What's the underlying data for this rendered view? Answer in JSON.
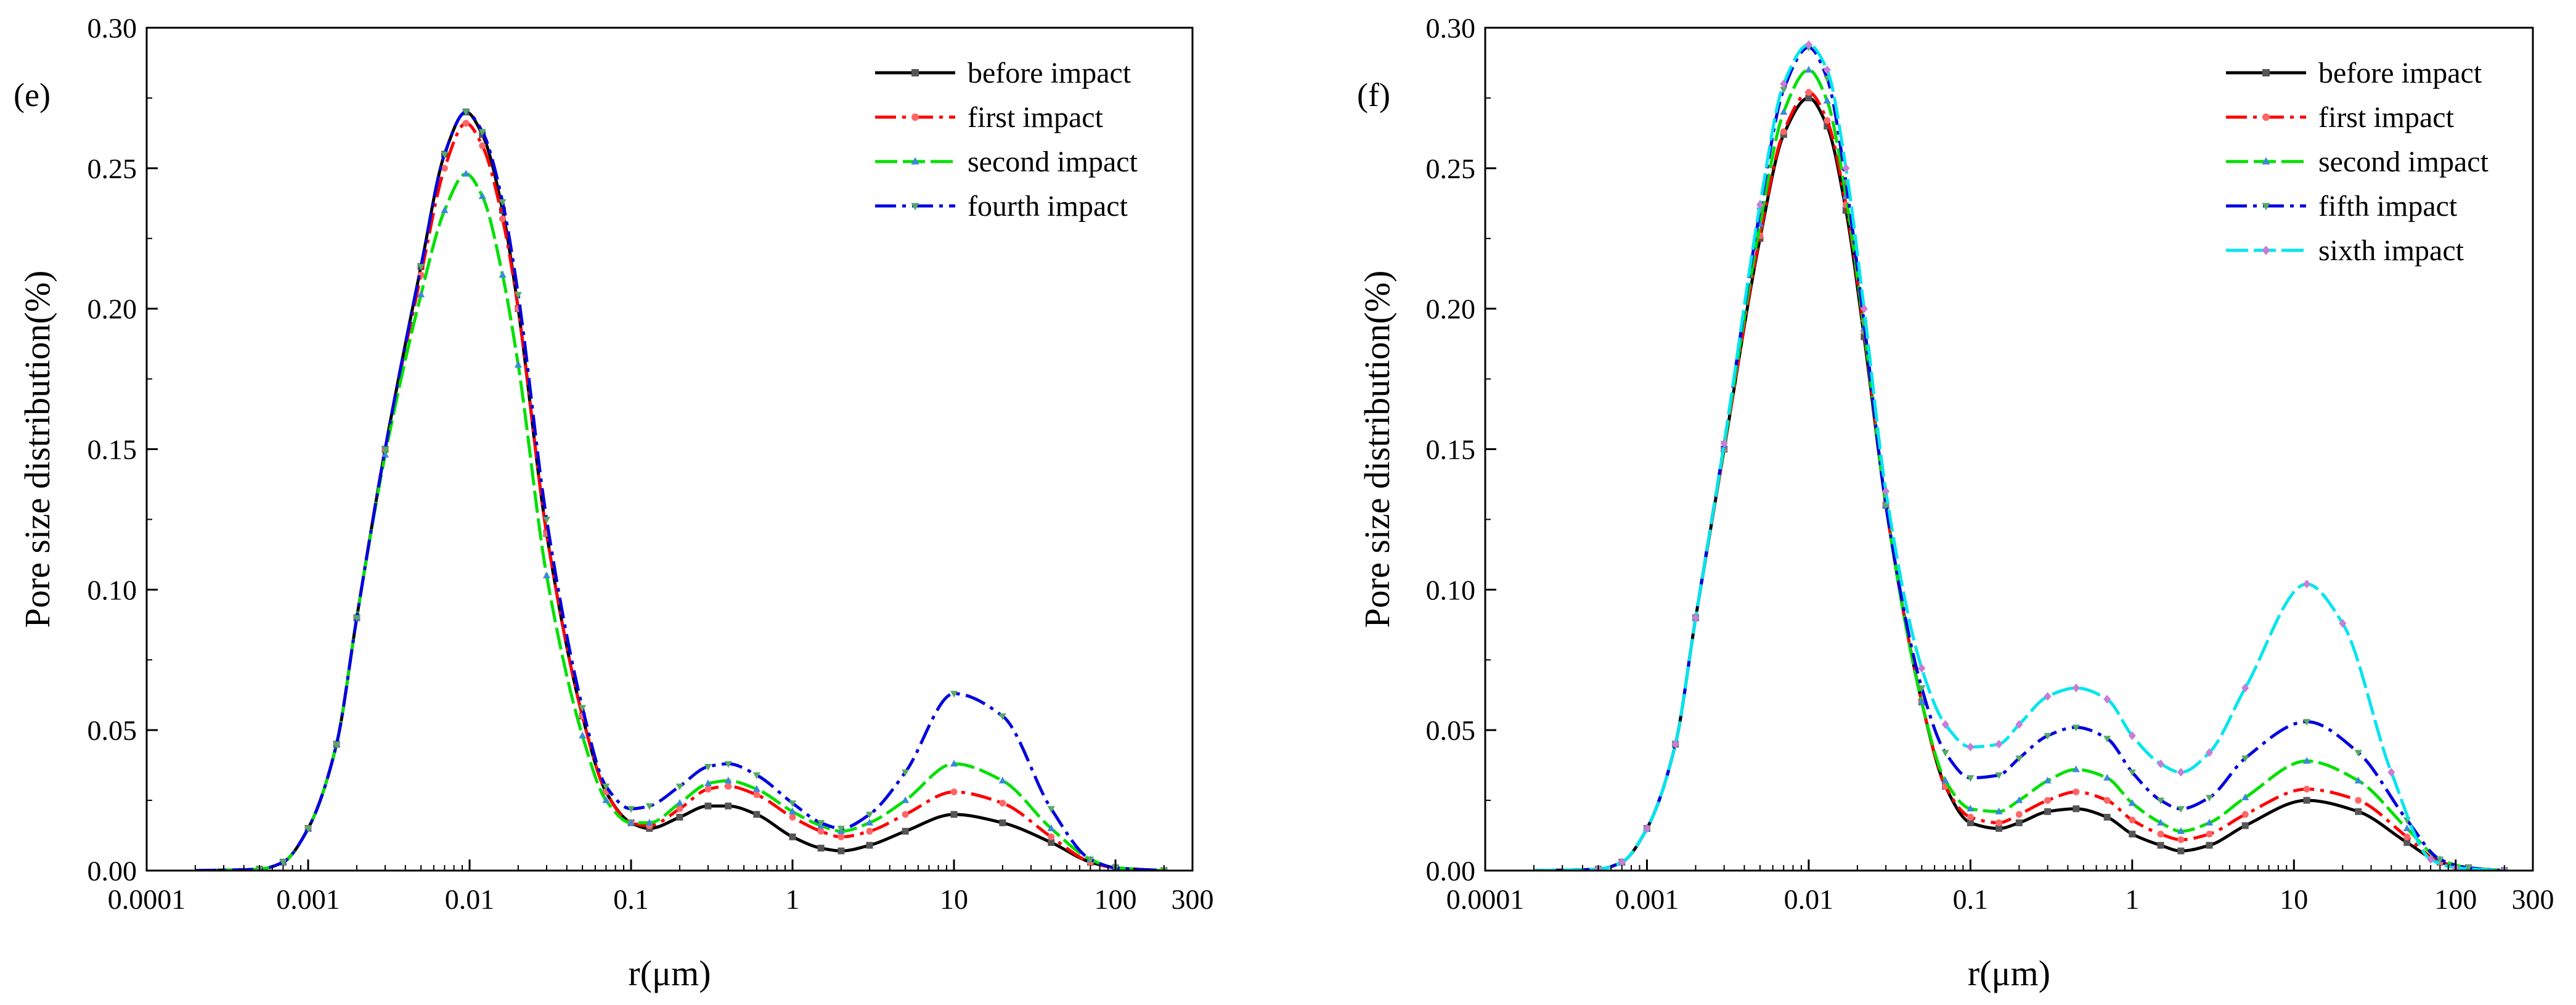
{
  "chart_data": [
    {
      "type": "line",
      "panel_label": "(e)",
      "xlabel": "r(μm)",
      "ylabel": "Pore size distribution(%)",
      "xscale": "log",
      "xlim": [
        0.0001,
        300
      ],
      "ylim": [
        0,
        0.3
      ],
      "xticks": [
        0.0001,
        0.001,
        0.01,
        0.1,
        1,
        10,
        100,
        300
      ],
      "xtick_labels": [
        "0.0001",
        "0.001",
        "0.01",
        "0.1",
        "1",
        "10",
        "100",
        "300"
      ],
      "yticks": [
        0,
        0.05,
        0.1,
        0.15,
        0.2,
        0.25,
        0.3
      ],
      "ytick_labels": [
        "0.00",
        "0.05",
        "0.10",
        "0.15",
        "0.20",
        "0.25",
        "0.30"
      ],
      "legend_position": "top-right",
      "series": [
        {
          "name": "before impact",
          "color": "#000000",
          "marker": "square",
          "x": [
            0.0002,
            0.0005,
            0.0007,
            0.001,
            0.0015,
            0.002,
            0.003,
            0.005,
            0.007,
            0.0095,
            0.012,
            0.016,
            0.02,
            0.03,
            0.05,
            0.07,
            0.1,
            0.13,
            0.2,
            0.3,
            0.4,
            0.6,
            1,
            1.5,
            2,
            3,
            5,
            10,
            20,
            40,
            70,
            100,
            200
          ],
          "y": [
            0,
            0.0005,
            0.003,
            0.015,
            0.045,
            0.09,
            0.15,
            0.215,
            0.255,
            0.27,
            0.262,
            0.235,
            0.2,
            0.12,
            0.055,
            0.028,
            0.017,
            0.015,
            0.019,
            0.023,
            0.023,
            0.02,
            0.012,
            0.008,
            0.007,
            0.009,
            0.014,
            0.02,
            0.017,
            0.01,
            0.003,
            0.001,
            0
          ]
        },
        {
          "name": "first impact",
          "color": "#ff0000",
          "marker": "circle",
          "x": [
            0.0002,
            0.0005,
            0.0007,
            0.001,
            0.0015,
            0.002,
            0.003,
            0.005,
            0.007,
            0.0095,
            0.012,
            0.016,
            0.02,
            0.03,
            0.05,
            0.07,
            0.1,
            0.13,
            0.2,
            0.3,
            0.4,
            0.6,
            1,
            1.5,
            2,
            3,
            5,
            10,
            20,
            40,
            70,
            100,
            200
          ],
          "y": [
            0,
            0.0005,
            0.003,
            0.015,
            0.045,
            0.09,
            0.15,
            0.212,
            0.25,
            0.266,
            0.258,
            0.232,
            0.2,
            0.12,
            0.055,
            0.028,
            0.017,
            0.016,
            0.022,
            0.029,
            0.03,
            0.027,
            0.019,
            0.014,
            0.012,
            0.014,
            0.02,
            0.028,
            0.024,
            0.012,
            0.003,
            0.001,
            0
          ]
        },
        {
          "name": "second impact",
          "color": "#00e000",
          "marker": "triangle-up",
          "x": [
            0.0002,
            0.0005,
            0.0007,
            0.001,
            0.0015,
            0.002,
            0.003,
            0.005,
            0.007,
            0.0095,
            0.012,
            0.016,
            0.02,
            0.03,
            0.05,
            0.07,
            0.1,
            0.13,
            0.2,
            0.3,
            0.4,
            0.6,
            1,
            1.5,
            2,
            3,
            5,
            10,
            20,
            40,
            70,
            100,
            200
          ],
          "y": [
            0,
            0.0005,
            0.003,
            0.015,
            0.045,
            0.09,
            0.148,
            0.205,
            0.235,
            0.248,
            0.24,
            0.212,
            0.18,
            0.105,
            0.048,
            0.025,
            0.017,
            0.017,
            0.024,
            0.031,
            0.032,
            0.029,
            0.021,
            0.016,
            0.014,
            0.017,
            0.025,
            0.038,
            0.032,
            0.015,
            0.004,
            0.001,
            0
          ]
        },
        {
          "name": "fourth impact",
          "color": "#0000e0",
          "marker": "triangle-down",
          "x": [
            0.0002,
            0.0005,
            0.0007,
            0.001,
            0.0015,
            0.002,
            0.003,
            0.005,
            0.007,
            0.0095,
            0.012,
            0.016,
            0.02,
            0.03,
            0.05,
            0.07,
            0.1,
            0.13,
            0.2,
            0.3,
            0.4,
            0.6,
            1,
            1.5,
            2,
            3,
            5,
            10,
            20,
            40,
            70,
            100,
            200
          ],
          "y": [
            0,
            0.0005,
            0.003,
            0.015,
            0.045,
            0.09,
            0.15,
            0.215,
            0.255,
            0.27,
            0.263,
            0.238,
            0.205,
            0.125,
            0.058,
            0.03,
            0.022,
            0.023,
            0.03,
            0.037,
            0.038,
            0.034,
            0.024,
            0.017,
            0.015,
            0.02,
            0.035,
            0.063,
            0.055,
            0.022,
            0.004,
            0.001,
            0
          ]
        }
      ]
    },
    {
      "type": "line",
      "panel_label": "(f)",
      "xlabel": "r(μm)",
      "ylabel": "Pore size distribution(%)",
      "xscale": "log",
      "xlim": [
        0.0001,
        300
      ],
      "ylim": [
        0,
        0.3
      ],
      "xticks": [
        0.0001,
        0.001,
        0.01,
        0.1,
        1,
        10,
        100,
        300
      ],
      "xtick_labels": [
        "0.0001",
        "0.001",
        "0.01",
        "0.1",
        "1",
        "10",
        "100",
        "300"
      ],
      "yticks": [
        0,
        0.05,
        0.1,
        0.15,
        0.2,
        0.25,
        0.3
      ],
      "ytick_labels": [
        "0.00",
        "0.05",
        "0.10",
        "0.15",
        "0.20",
        "0.25",
        "0.30"
      ],
      "legend_position": "top-right",
      "series": [
        {
          "name": "before impact",
          "color": "#000000",
          "marker": "square",
          "x": [
            0.0002,
            0.0005,
            0.0007,
            0.001,
            0.0015,
            0.002,
            0.003,
            0.005,
            0.007,
            0.01,
            0.013,
            0.017,
            0.022,
            0.03,
            0.05,
            0.07,
            0.1,
            0.15,
            0.2,
            0.3,
            0.45,
            0.7,
            1,
            1.5,
            2,
            3,
            5,
            12,
            25,
            50,
            80,
            120,
            200
          ],
          "y": [
            0,
            0.0005,
            0.003,
            0.015,
            0.045,
            0.09,
            0.15,
            0.225,
            0.262,
            0.275,
            0.265,
            0.235,
            0.19,
            0.13,
            0.06,
            0.03,
            0.017,
            0.015,
            0.017,
            0.021,
            0.022,
            0.019,
            0.013,
            0.009,
            0.007,
            0.009,
            0.016,
            0.025,
            0.021,
            0.01,
            0.003,
            0.001,
            0
          ]
        },
        {
          "name": "first impact",
          "color": "#ff0000",
          "marker": "circle",
          "x": [
            0.0002,
            0.0005,
            0.0007,
            0.001,
            0.0015,
            0.002,
            0.003,
            0.005,
            0.007,
            0.01,
            0.013,
            0.017,
            0.022,
            0.03,
            0.05,
            0.07,
            0.1,
            0.15,
            0.2,
            0.3,
            0.45,
            0.7,
            1,
            1.5,
            2,
            3,
            5,
            12,
            25,
            50,
            80,
            120,
            200
          ],
          "y": [
            0,
            0.0005,
            0.003,
            0.015,
            0.045,
            0.09,
            0.15,
            0.226,
            0.263,
            0.277,
            0.267,
            0.237,
            0.192,
            0.13,
            0.06,
            0.03,
            0.019,
            0.017,
            0.02,
            0.025,
            0.028,
            0.025,
            0.018,
            0.013,
            0.011,
            0.013,
            0.02,
            0.029,
            0.025,
            0.012,
            0.003,
            0.001,
            0
          ]
        },
        {
          "name": "second impact",
          "color": "#00e000",
          "marker": "triangle-up",
          "x": [
            0.0002,
            0.0005,
            0.0007,
            0.001,
            0.0015,
            0.002,
            0.003,
            0.005,
            0.007,
            0.01,
            0.013,
            0.017,
            0.022,
            0.03,
            0.05,
            0.07,
            0.1,
            0.15,
            0.2,
            0.3,
            0.45,
            0.7,
            1,
            1.5,
            2,
            3,
            5,
            12,
            25,
            50,
            80,
            120,
            200
          ],
          "y": [
            0,
            0.0005,
            0.003,
            0.015,
            0.045,
            0.09,
            0.151,
            0.23,
            0.27,
            0.285,
            0.274,
            0.24,
            0.193,
            0.13,
            0.06,
            0.032,
            0.022,
            0.021,
            0.025,
            0.032,
            0.036,
            0.033,
            0.024,
            0.017,
            0.014,
            0.017,
            0.026,
            0.039,
            0.032,
            0.015,
            0.004,
            0.001,
            0
          ]
        },
        {
          "name": "fifth impact",
          "color": "#0000e0",
          "marker": "triangle-down",
          "x": [
            0.0002,
            0.0005,
            0.0007,
            0.001,
            0.0015,
            0.002,
            0.003,
            0.005,
            0.007,
            0.01,
            0.013,
            0.017,
            0.022,
            0.03,
            0.05,
            0.07,
            0.1,
            0.15,
            0.2,
            0.3,
            0.45,
            0.7,
            1,
            1.5,
            2,
            3,
            5,
            12,
            25,
            50,
            80,
            120,
            200
          ],
          "y": [
            0,
            0.0005,
            0.003,
            0.015,
            0.045,
            0.09,
            0.152,
            0.235,
            0.278,
            0.293,
            0.282,
            0.245,
            0.195,
            0.13,
            0.065,
            0.042,
            0.033,
            0.034,
            0.04,
            0.048,
            0.051,
            0.047,
            0.035,
            0.025,
            0.022,
            0.026,
            0.04,
            0.053,
            0.042,
            0.018,
            0.004,
            0.001,
            0
          ]
        },
        {
          "name": "sixth impact",
          "color": "#00e5ee",
          "marker": "diamond",
          "x": [
            0.0002,
            0.0005,
            0.0007,
            0.001,
            0.0015,
            0.002,
            0.003,
            0.005,
            0.007,
            0.01,
            0.013,
            0.017,
            0.022,
            0.03,
            0.05,
            0.07,
            0.1,
            0.15,
            0.2,
            0.3,
            0.45,
            0.7,
            1,
            1.5,
            2,
            3,
            5,
            12,
            20,
            40,
            70,
            100,
            200
          ],
          "y": [
            0,
            0.0005,
            0.003,
            0.015,
            0.045,
            0.09,
            0.152,
            0.237,
            0.28,
            0.294,
            0.285,
            0.25,
            0.2,
            0.135,
            0.072,
            0.052,
            0.044,
            0.045,
            0.052,
            0.062,
            0.065,
            0.061,
            0.048,
            0.038,
            0.035,
            0.042,
            0.065,
            0.102,
            0.088,
            0.035,
            0.004,
            0.001,
            0
          ]
        }
      ]
    }
  ]
}
